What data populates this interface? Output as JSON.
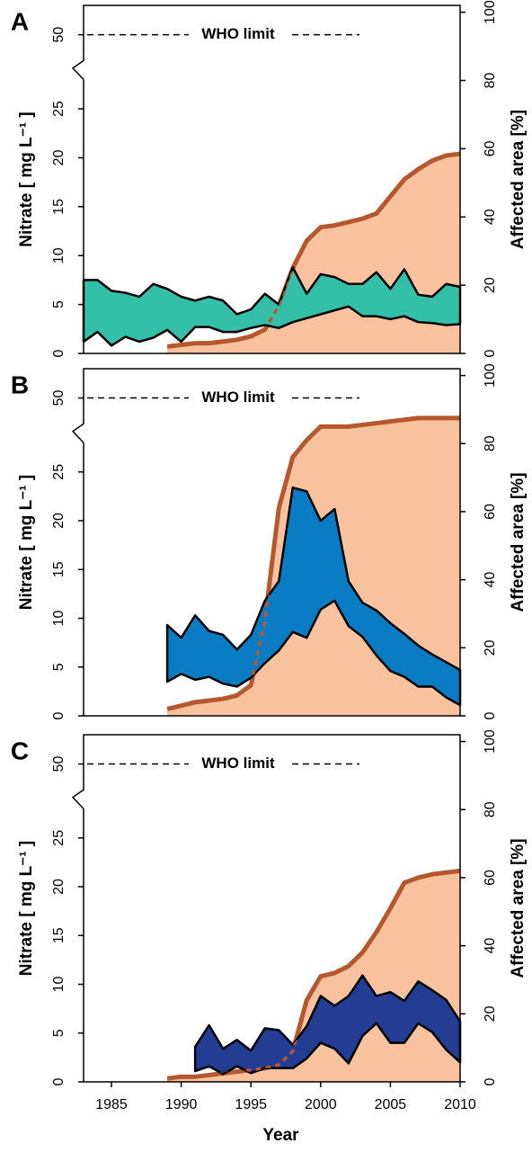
{
  "chart_data": [
    {
      "type": "area-band",
      "label": "A",
      "y_label": "Nitrate [ mg L⁻¹ ]",
      "y2_label": "Affected area [%]",
      "xlim": [
        1983,
        2010
      ],
      "ylim": [
        0,
        53
      ],
      "axis_break": [
        28,
        48
      ],
      "yticks": [
        0,
        5,
        10,
        15,
        20,
        25,
        50
      ],
      "y2lim": [
        0,
        102
      ],
      "y2ticks": [
        0,
        20,
        40,
        60,
        80,
        100
      ],
      "annotation": {
        "text": "WHO limit",
        "value": 50
      },
      "series": [
        {
          "kind": "area",
          "axis": "y2",
          "color": "#b5582f",
          "fill": "#f9c29f",
          "x": [
            1989,
            1990,
            1991,
            1992,
            1993,
            1994,
            1995,
            1996,
            1997,
            1998,
            1999,
            2000,
            2001,
            2002,
            2003,
            2004,
            2005,
            2006,
            2007,
            2008,
            2009,
            2010
          ],
          "values": [
            2,
            2.5,
            3,
            3,
            3.5,
            4,
            5,
            7,
            14,
            25,
            33,
            37,
            37.5,
            38.5,
            39.5,
            41,
            46,
            51,
            54,
            56.5,
            58,
            58.5
          ]
        },
        {
          "kind": "band",
          "color": "#33bfa8",
          "x": [
            1983,
            1984,
            1985,
            1986,
            1987,
            1988,
            1989,
            1990,
            1991,
            1992,
            1993,
            1994,
            1995,
            1996,
            1997,
            1998,
            1999,
            2000,
            2001,
            2002,
            2003,
            2004,
            2005,
            2006,
            2007,
            2008,
            2009,
            2010
          ],
          "upper": [
            7.5,
            7.5,
            6.4,
            6.2,
            5.8,
            7.1,
            6.6,
            5.8,
            5.4,
            5.8,
            5.4,
            4.0,
            4.5,
            6.1,
            5.0,
            8.8,
            6.1,
            8.1,
            7.8,
            7.1,
            7.1,
            8.3,
            6.6,
            8.6,
            6.0,
            5.8,
            7.1,
            6.8
          ],
          "lower": [
            1.2,
            2.2,
            0.8,
            1.7,
            1.2,
            1.6,
            2.4,
            1.2,
            2.7,
            2.7,
            2.2,
            2.2,
            2.6,
            2.9,
            2.6,
            3.2,
            3.6,
            4.0,
            4.4,
            4.8,
            3.8,
            3.8,
            3.5,
            3.8,
            3.2,
            3.1,
            2.9,
            3.0
          ]
        }
      ]
    },
    {
      "type": "area-band",
      "label": "B",
      "y_label": "Nitrate [ mg L⁻¹ ]",
      "y2_label": "Affected area [%]",
      "xlim": [
        1983,
        2010
      ],
      "ylim": [
        0,
        53
      ],
      "axis_break": [
        28,
        48
      ],
      "yticks": [
        0,
        5,
        10,
        15,
        20,
        25,
        50
      ],
      "y2lim": [
        0,
        102
      ],
      "y2ticks": [
        0,
        20,
        40,
        60,
        80,
        100
      ],
      "annotation": {
        "text": "WHO limit",
        "value": 50
      },
      "series": [
        {
          "kind": "area",
          "axis": "y2",
          "color": "#b5582f",
          "fill": "#f9c29f",
          "x": [
            1989,
            1990,
            1991,
            1992,
            1993,
            1994,
            1995,
            1996,
            1997,
            1998,
            1999,
            2000,
            2001,
            2002,
            2003,
            2004,
            2005,
            2006,
            2007,
            2008,
            2009,
            2010
          ],
          "values": [
            2,
            3,
            4,
            4.5,
            5,
            6,
            9,
            28,
            61,
            76,
            81,
            85,
            85,
            85,
            85.5,
            86,
            86.5,
            87,
            87.5,
            87.5,
            87.5,
            87.5
          ]
        },
        {
          "kind": "band",
          "color": "#0a7cc4",
          "x": [
            1989,
            1990,
            1991,
            1992,
            1993,
            1994,
            1995,
            1996,
            1997,
            1998,
            1999,
            2000,
            2001,
            2002,
            2003,
            2004,
            2005,
            2006,
            2007,
            2008,
            2009,
            2010
          ],
          "upper": [
            9.3,
            8.0,
            10.3,
            8.7,
            8.3,
            6.8,
            8.3,
            11.8,
            13.8,
            23.4,
            23.0,
            20.0,
            21.2,
            13.8,
            11.6,
            10.8,
            9.5,
            8.4,
            7.2,
            6.3,
            5.5,
            4.7
          ],
          "lower": [
            3.5,
            4.3,
            3.7,
            4.0,
            3.3,
            3.0,
            3.9,
            5.4,
            6.7,
            8.6,
            8.0,
            10.9,
            11.8,
            9.2,
            8.1,
            6.2,
            4.6,
            4.0,
            3.0,
            3.0,
            1.9,
            1.1
          ]
        }
      ]
    },
    {
      "type": "area-band",
      "label": "C",
      "y_label": "Nitrate [ mg L⁻¹ ]",
      "y2_label": "Affected area [%]",
      "x_label": "Year",
      "xlim": [
        1983,
        2010
      ],
      "xticks": [
        1985,
        1990,
        1995,
        2000,
        2005,
        2010
      ],
      "ylim": [
        0,
        53
      ],
      "axis_break": [
        28,
        48
      ],
      "yticks": [
        0,
        5,
        10,
        15,
        20,
        25,
        50
      ],
      "y2lim": [
        0,
        102
      ],
      "y2ticks": [
        0,
        20,
        40,
        60,
        80,
        100
      ],
      "annotation": {
        "text": "WHO limit",
        "value": 50
      },
      "series": [
        {
          "kind": "area",
          "axis": "y2",
          "color": "#b5582f",
          "fill": "#f9c29f",
          "x": [
            1989,
            1990,
            1991,
            1992,
            1993,
            1994,
            1995,
            1996,
            1997,
            1998,
            1999,
            2000,
            2001,
            2002,
            2003,
            2004,
            2005,
            2006,
            2007,
            2008,
            2009,
            2010
          ],
          "values": [
            1,
            1.5,
            1.5,
            2,
            2.5,
            3,
            3.5,
            4,
            5,
            9,
            24,
            31,
            32,
            34,
            38,
            44,
            51,
            58.5,
            60,
            61,
            61.5,
            62
          ]
        },
        {
          "kind": "band",
          "color": "#233c94",
          "x": [
            1991,
            1992,
            1993,
            1994,
            1995,
            1996,
            1997,
            1998,
            1999,
            2000,
            2001,
            2002,
            2003,
            2004,
            2005,
            2006,
            2007,
            2008,
            2009,
            2010
          ],
          "upper": [
            3.6,
            5.8,
            3.4,
            4.3,
            3.2,
            5.5,
            5.3,
            3.8,
            5.7,
            8.8,
            7.8,
            8.8,
            10.9,
            8.8,
            9.2,
            8.3,
            10.3,
            9.4,
            8.4,
            6.2
          ],
          "lower": [
            1.1,
            1.6,
            0.8,
            1.6,
            0.9,
            1.4,
            1.4,
            1.4,
            2.4,
            4.0,
            3.4,
            1.9,
            4.7,
            6.0,
            4.0,
            4.0,
            6.0,
            5.1,
            3.3,
            2.0
          ]
        }
      ]
    }
  ]
}
